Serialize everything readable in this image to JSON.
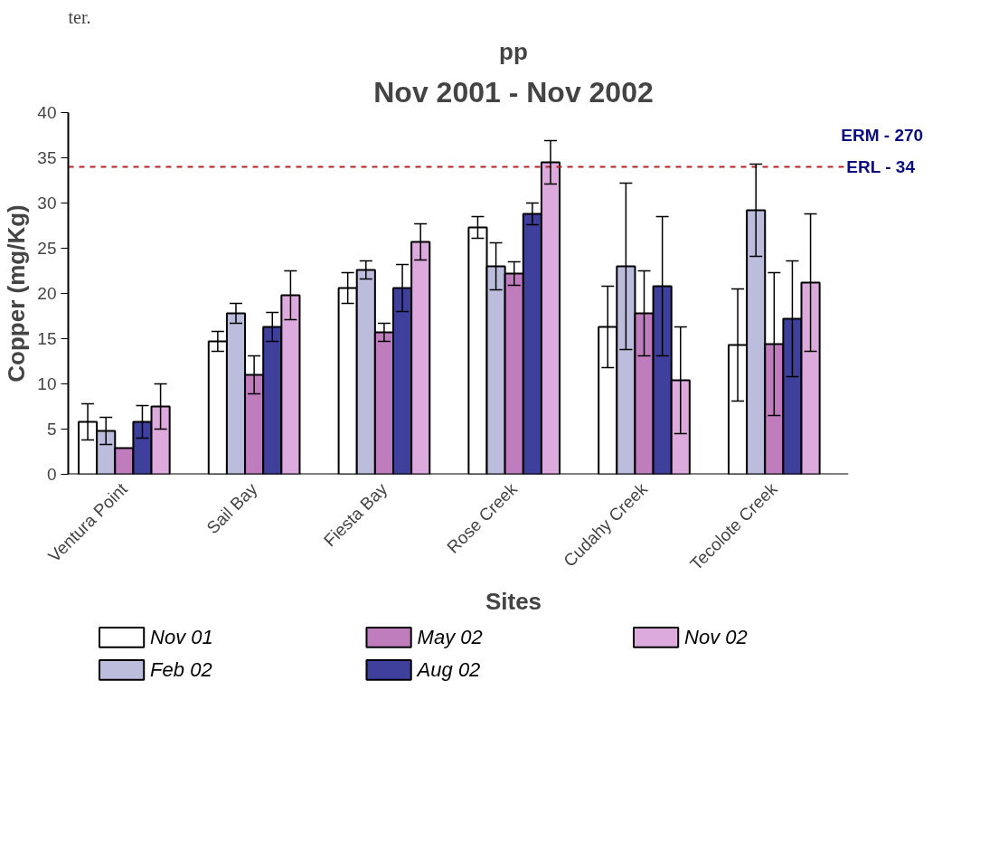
{
  "chart_data": {
    "type": "bar",
    "title": "pp",
    "subtitle": "Nov 2001 - Nov 2002",
    "xlabel": "Sites",
    "ylabel": "Copper (mg/Kg)",
    "categories": [
      "Ventura Point",
      "Sail Bay",
      "Fiesta Bay",
      "Rose Creek",
      "Cudahy Creek",
      "Tecolote Creek"
    ],
    "series": [
      {
        "name": "Nov 01",
        "color": "#ffffff",
        "values": [
          5.8,
          14.7,
          20.6,
          27.3,
          16.3,
          14.3
        ],
        "errors": [
          2.0,
          1.1,
          1.7,
          1.2,
          4.5,
          6.2
        ]
      },
      {
        "name": "Feb 02",
        "color": "#bcbcdc",
        "values": [
          4.8,
          17.8,
          22.6,
          23.0,
          23.0,
          29.2
        ],
        "errors": [
          1.5,
          1.1,
          1.0,
          2.6,
          9.2,
          5.1
        ]
      },
      {
        "name": "May 02",
        "color": "#c07dbe",
        "values": [
          2.9,
          11.0,
          15.7,
          22.2,
          17.8,
          14.4
        ],
        "errors": [
          null,
          2.1,
          1.0,
          1.3,
          4.7,
          7.9
        ]
      },
      {
        "name": "Aug 02",
        "color": "#3f3f9c",
        "values": [
          5.8,
          16.3,
          20.6,
          28.8,
          20.8,
          17.2
        ],
        "errors": [
          1.8,
          1.6,
          2.6,
          1.2,
          7.7,
          6.4
        ]
      },
      {
        "name": "Nov 02",
        "color": "#dcaadc",
        "values": [
          7.5,
          19.8,
          25.7,
          34.5,
          10.4,
          21.2
        ],
        "errors": [
          2.5,
          2.7,
          2.0,
          2.4,
          5.9,
          7.6
        ]
      }
    ],
    "ylim": [
      0,
      40
    ],
    "yticks": [
      0,
      5,
      10,
      15,
      20,
      25,
      30,
      35,
      40
    ],
    "grid": false,
    "legend": "bottom",
    "ref_lines": [
      {
        "axis": "y",
        "value": 34,
        "label": "ERL - 34",
        "color": "#b22222",
        "line_style": "dashed"
      }
    ],
    "annotations": [
      "ter.",
      "ERM  - 270"
    ]
  }
}
